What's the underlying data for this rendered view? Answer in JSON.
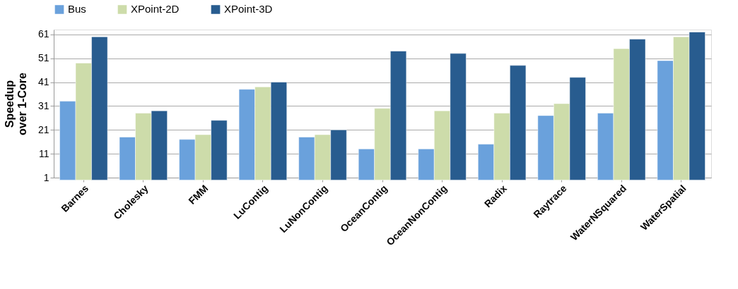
{
  "chart_data": {
    "type": "bar",
    "ylabel": "Speedup\nover 1-Core",
    "categories": [
      "Barnes",
      "Cholesky",
      "FMM",
      "LuContig",
      "LuNonContig",
      "OceanContig",
      "OceanNonContig",
      "Radix",
      "Raytrace",
      "WaterNSquared",
      "WaterSpatial"
    ],
    "series": [
      {
        "name": "Bus",
        "color": "#6aa1dc",
        "values": [
          33,
          18,
          17,
          38,
          18,
          13,
          13,
          15,
          27,
          28,
          50
        ]
      },
      {
        "name": "XPoint-2D",
        "color": "#cddcaa",
        "values": [
          49,
          28,
          19,
          39,
          19,
          30,
          29,
          28,
          32,
          55,
          60
        ]
      },
      {
        "name": "XPoint-3D",
        "color": "#285c8f",
        "values": [
          60,
          29,
          25,
          41,
          21,
          54,
          53,
          48,
          43,
          59,
          62
        ]
      }
    ],
    "ylim": [
      1,
      63
    ],
    "yticks": [
      1,
      11,
      21,
      31,
      41,
      51,
      61
    ],
    "grid": "y",
    "legend": "top"
  }
}
